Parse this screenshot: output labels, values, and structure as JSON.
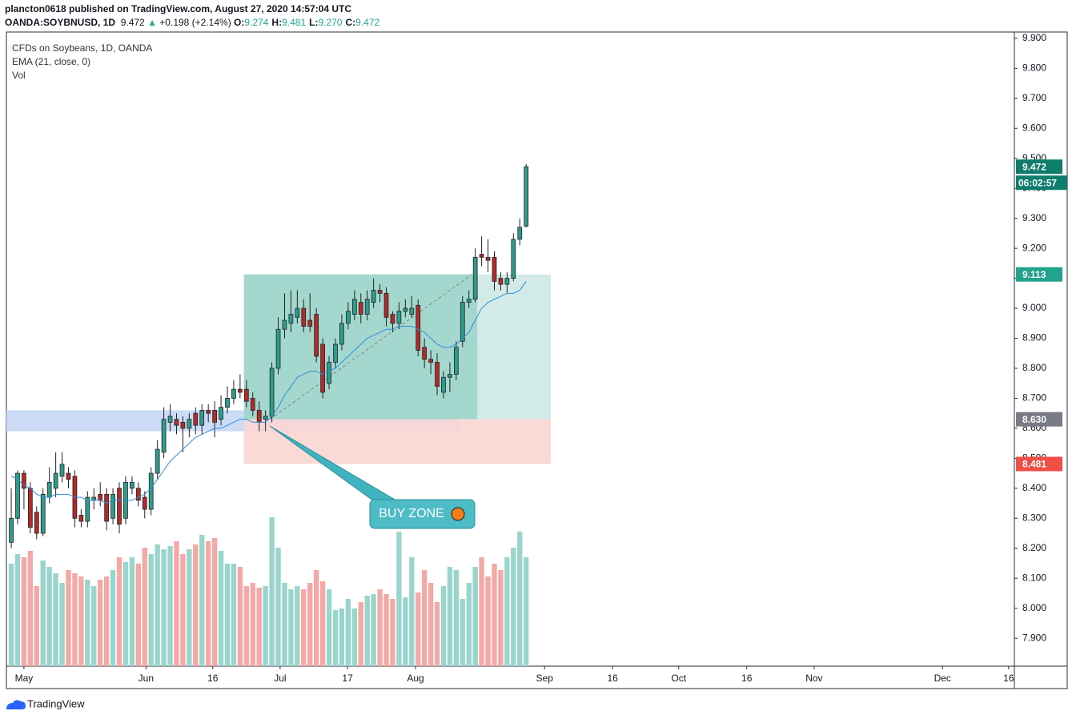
{
  "header": {
    "author_line": "plancton0618 published on TradingView.com, August 27, 2020 14:57:04 UTC",
    "symbol": "OANDA:SOYBNUSD, 1D",
    "price": "9.472",
    "arrow": "▲",
    "change": "+0.198 (+2.14%)",
    "ohlc": [
      {
        "key": "O:",
        "value": "9.274"
      },
      {
        "key": "H:",
        "value": "9.481"
      },
      {
        "key": "L:",
        "value": "9.270"
      },
      {
        "key": "C:",
        "value": "9.472"
      }
    ]
  },
  "legend": [
    "CFDs on Soybeans, 1D, OANDA",
    "EMA (21, close, 0)",
    "Vol"
  ],
  "annotation": "BUY ZONE",
  "footer": "TradingView",
  "chart_data": {
    "type": "candlestick",
    "up_color": "#2e9c8a",
    "down_color": "#b22b2b",
    "ema_color": "#2f8fd8",
    "up_volume_color": "#9ad5cd",
    "down_volume_color": "#f4a9a6",
    "xlim": [
      -0.76,
      157.8
    ],
    "ylim": [
      7.807,
      9.921
    ],
    "volume_lim": [
      0,
      100
    ],
    "grid": false,
    "xticks": [
      {
        "value": 2,
        "label": "May"
      },
      {
        "value": 21.2,
        "label": "Jun"
      },
      {
        "value": 31.7,
        "label": "16"
      },
      {
        "value": 42.3,
        "label": "Jul"
      },
      {
        "value": 52.9,
        "label": "17"
      },
      {
        "value": 63.6,
        "label": "Aug"
      },
      {
        "value": 83.9,
        "label": "Sep"
      },
      {
        "value": 94.6,
        "label": "16"
      },
      {
        "value": 105,
        "label": "Oct"
      },
      {
        "value": 115.7,
        "label": "16"
      },
      {
        "value": 126.3,
        "label": "Nov"
      },
      {
        "value": 146.5,
        "label": "Dec"
      },
      {
        "value": 156.9,
        "label": "16"
      }
    ],
    "yticks": [
      {
        "value": 7.9,
        "label": "7.900"
      },
      {
        "value": 8.0,
        "label": "8.000"
      },
      {
        "value": 8.1,
        "label": "8.100"
      },
      {
        "value": 8.2,
        "label": "8.200"
      },
      {
        "value": 8.3,
        "label": "8.300"
      },
      {
        "value": 8.4,
        "label": "8.400"
      },
      {
        "value": 8.5,
        "label": "8.500"
      },
      {
        "value": 8.6,
        "label": "8.600"
      },
      {
        "value": 8.7,
        "label": "8.700"
      },
      {
        "value": 8.8,
        "label": "8.800"
      },
      {
        "value": 8.9,
        "label": "8.900"
      },
      {
        "value": 9.0,
        "label": "9.000"
      },
      {
        "value": 9.1,
        "label": "9.100"
      },
      {
        "value": 9.2,
        "label": "9.200"
      },
      {
        "value": 9.3,
        "label": "9.300"
      },
      {
        "value": 9.4,
        "label": "9.400"
      },
      {
        "value": 9.5,
        "label": "9.500"
      },
      {
        "value": 9.6,
        "label": "9.600"
      },
      {
        "value": 9.7,
        "label": "9.700"
      },
      {
        "value": 9.8,
        "label": "9.800"
      },
      {
        "value": 9.9,
        "label": "9.900"
      }
    ],
    "open": [
      8.22,
      8.3,
      8.45,
      8.4,
      8.32,
      8.25,
      8.37,
      8.4,
      8.44,
      8.45,
      8.44,
      8.31,
      8.29,
      8.36,
      8.38,
      8.38,
      8.3,
      8.4,
      8.3,
      8.4,
      8.4,
      8.37,
      8.33,
      8.45,
      8.52,
      8.62,
      8.63,
      8.62,
      8.6,
      8.65,
      8.61,
      8.66,
      8.66,
      8.63,
      8.67,
      8.7,
      8.73,
      8.73,
      8.7,
      8.66,
      8.63,
      8.64,
      8.8,
      8.93,
      8.95,
      8.97,
      9.0,
      8.96,
      8.98,
      8.88,
      8.75,
      8.82,
      8.88,
      8.95,
      8.98,
      9.02,
      8.98,
      9.02,
      9.06,
      9.05,
      8.98,
      8.95,
      8.99,
      8.98,
      9.01,
      8.87,
      8.83,
      8.82,
      8.72,
      8.77,
      8.78,
      8.89,
      9.02,
      9.03,
      9.18,
      9.17,
      9.17,
      9.1,
      9.08,
      9.1,
      9.23,
      9.274
    ],
    "high": [
      8.4,
      8.46,
      8.46,
      8.42,
      8.34,
      8.4,
      8.47,
      8.52,
      8.52,
      8.47,
      8.46,
      8.33,
      8.39,
      8.4,
      8.42,
      8.4,
      8.4,
      8.42,
      8.44,
      8.44,
      8.42,
      8.39,
      8.47,
      8.56,
      8.67,
      8.68,
      8.65,
      8.64,
      8.65,
      8.67,
      8.68,
      8.68,
      8.69,
      8.71,
      8.74,
      8.76,
      8.78,
      8.76,
      8.72,
      8.69,
      8.66,
      8.82,
      8.97,
      9.05,
      9.06,
      9.06,
      9.03,
      9.05,
      9.0,
      8.9,
      8.84,
      8.9,
      8.98,
      9.02,
      9.06,
      9.05,
      9.06,
      9.1,
      9.08,
      9.07,
      8.99,
      9.02,
      9.03,
      9.04,
      9.03,
      8.9,
      8.86,
      8.85,
      8.79,
      8.82,
      8.89,
      9.04,
      9.06,
      9.2,
      9.24,
      9.23,
      9.19,
      9.12,
      9.12,
      9.25,
      9.3,
      9.481
    ],
    "low": [
      8.2,
      8.28,
      8.33,
      8.25,
      8.23,
      8.24,
      8.35,
      8.37,
      8.42,
      8.4,
      8.27,
      8.27,
      8.27,
      8.33,
      8.34,
      8.26,
      8.28,
      8.25,
      8.28,
      8.38,
      8.34,
      8.3,
      8.31,
      8.43,
      8.5,
      8.59,
      8.58,
      8.52,
      8.57,
      8.58,
      8.58,
      8.62,
      8.57,
      8.61,
      8.65,
      8.68,
      8.7,
      8.67,
      8.64,
      8.59,
      8.59,
      8.62,
      8.78,
      8.9,
      8.92,
      8.95,
      8.92,
      8.92,
      8.82,
      8.7,
      8.73,
      8.8,
      8.86,
      8.93,
      8.96,
      8.95,
      8.96,
      9.0,
      9.02,
      8.94,
      8.92,
      8.93,
      8.97,
      8.97,
      8.84,
      8.8,
      8.78,
      8.71,
      8.7,
      8.72,
      8.76,
      8.87,
      9.0,
      9.02,
      9.14,
      9.12,
      9.06,
      9.06,
      9.05,
      9.09,
      9.21,
      9.27
    ],
    "close": [
      8.3,
      8.45,
      8.4,
      8.27,
      8.25,
      8.38,
      8.42,
      8.45,
      8.48,
      8.43,
      8.3,
      8.29,
      8.37,
      8.37,
      8.36,
      8.29,
      8.38,
      8.28,
      8.42,
      8.42,
      8.36,
      8.33,
      8.45,
      8.53,
      8.63,
      8.64,
      8.61,
      8.6,
      8.63,
      8.61,
      8.66,
      8.65,
      8.62,
      8.67,
      8.7,
      8.73,
      8.72,
      8.69,
      8.66,
      8.62,
      8.64,
      8.8,
      8.93,
      8.96,
      8.98,
      9.0,
      8.94,
      8.94,
      8.84,
      8.72,
      8.82,
      8.88,
      8.95,
      8.99,
      9.03,
      8.98,
      9.03,
      9.06,
      9.05,
      8.97,
      8.95,
      8.99,
      9.0,
      9.0,
      8.86,
      8.83,
      8.82,
      8.74,
      8.77,
      8.78,
      8.87,
      9.02,
      9.03,
      9.17,
      9.17,
      9.16,
      9.09,
      9.08,
      9.1,
      9.23,
      9.27,
      9.472
    ],
    "ema": [
      8.44,
      8.43,
      8.41,
      8.4,
      8.38,
      8.37,
      8.37,
      8.38,
      8.38,
      8.38,
      8.37,
      8.37,
      8.36,
      8.36,
      8.36,
      8.35,
      8.36,
      8.36,
      8.36,
      8.36,
      8.37,
      8.38,
      8.4,
      8.43,
      8.46,
      8.49,
      8.51,
      8.53,
      8.55,
      8.57,
      8.58,
      8.59,
      8.6,
      8.6,
      8.61,
      8.62,
      8.63,
      8.63,
      8.62,
      8.62,
      8.62,
      8.64,
      8.67,
      8.71,
      8.74,
      8.77,
      8.78,
      8.79,
      8.79,
      8.78,
      8.79,
      8.8,
      8.82,
      8.84,
      8.86,
      8.88,
      8.9,
      8.91,
      8.92,
      8.93,
      8.93,
      8.94,
      8.94,
      8.94,
      8.93,
      8.92,
      8.9,
      8.88,
      8.87,
      8.87,
      8.88,
      8.9,
      8.92,
      8.96,
      9.0,
      9.02,
      9.03,
      9.04,
      9.05,
      9.05,
      9.06,
      9.09
    ],
    "volume": [
      64,
      70,
      68,
      72,
      50,
      66,
      62,
      58,
      52,
      60,
      58,
      56,
      54,
      50,
      54,
      56,
      60,
      68,
      65,
      68,
      64,
      74,
      70,
      76,
      73,
      75,
      78,
      70,
      73,
      76,
      82,
      78,
      80,
      72,
      64,
      64,
      62,
      50,
      52,
      49,
      50,
      93,
      74,
      52,
      48,
      50,
      48,
      52,
      60,
      53,
      48,
      35,
      36,
      42,
      36,
      40,
      44,
      45,
      48,
      45,
      42,
      84,
      43,
      68,
      46,
      60,
      52,
      40,
      50,
      62,
      60,
      42,
      52,
      62,
      68,
      56,
      64,
      60,
      68,
      74,
      84,
      68
    ],
    "zones": [
      {
        "top": 8.66,
        "bottom": 8.59,
        "from": -0.76,
        "to": 70.4,
        "color": "#c6d8f6"
      },
      {
        "top": 9.113,
        "bottom": 8.63,
        "from": 36.6,
        "to": 84.9,
        "color": "#cde9e6"
      },
      {
        "top": 9.113,
        "bottom": 8.63,
        "from": 36.6,
        "to": 73.3,
        "color": "#9fd5cb"
      },
      {
        "top": 8.63,
        "bottom": 8.481,
        "from": 36.6,
        "to": 84.9,
        "color": "#f9d6d3"
      }
    ],
    "trend": {
      "from": [
        40.7,
        8.63
      ],
      "to": [
        72.5,
        9.113
      ]
    },
    "price_labels": [
      {
        "value": 9.472,
        "color": "#0f7d6c"
      },
      {
        "value": 9.113,
        "color": "#22a38d"
      },
      {
        "value": 8.63,
        "label": "8.630",
        "color": "#787b86"
      },
      {
        "value": 8.481,
        "color": "#ef4f45"
      }
    ],
    "countdown": "06:02:57"
  }
}
